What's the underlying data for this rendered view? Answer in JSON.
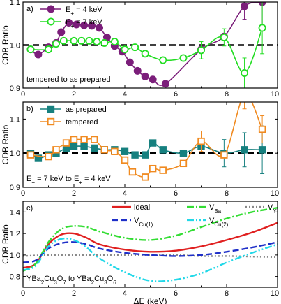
{
  "chart_data": [
    {
      "panel_label": "a)",
      "type": "line",
      "annotation": "tempered to as prepared",
      "ylabel": "CDB Ratio",
      "xlim": [
        0,
        10
      ],
      "ylim": [
        0.9,
        1.1
      ],
      "yticks": [
        0.9,
        1.0,
        1.1
      ],
      "xticks": [
        0,
        2,
        4,
        6,
        8,
        10
      ],
      "reference_line": 1.0,
      "legend_position": "top-left",
      "series": [
        {
          "name_parts": [
            "E",
            "+",
            " = 4 keV"
          ],
          "color": "#7B1E7A",
          "marker": "circle-filled",
          "points": [
            [
              0.3,
              0.99
            ],
            [
              0.6,
              0.978
            ],
            [
              1.0,
              0.995
            ],
            [
              1.3,
              1.005
            ],
            [
              1.5,
              1.03
            ],
            [
              1.8,
              1.052
            ],
            [
              2.1,
              1.048
            ],
            [
              2.4,
              1.046
            ],
            [
              2.7,
              1.045
            ],
            [
              3.0,
              1.04
            ],
            [
              3.3,
              1.018
            ],
            [
              3.6,
              0.998
            ],
            [
              3.9,
              0.985
            ],
            [
              4.2,
              0.96
            ],
            [
              4.5,
              0.94
            ],
            [
              4.8,
              0.927
            ],
            [
              5.1,
              0.92
            ],
            [
              5.6,
              0.91
            ],
            [
              7.0,
              0.99
            ],
            [
              7.9,
              1.02
            ],
            [
              8.7,
              1.09
            ],
            [
              9.4,
              1.1
            ]
          ],
          "errors": [
            [
              8.7,
              0.03
            ],
            [
              9.4,
              0.06
            ]
          ]
        },
        {
          "name_parts": [
            "E",
            "+",
            " = 7 keV"
          ],
          "color": "#22DD22",
          "marker": "circle-open",
          "points": [
            [
              0.3,
              0.99
            ],
            [
              1.0,
              0.99
            ],
            [
              1.3,
              1.003
            ],
            [
              1.6,
              1.01
            ],
            [
              2.0,
              1.01
            ],
            [
              2.3,
              1.01
            ],
            [
              2.6,
              1.01
            ],
            [
              2.9,
              1.008
            ],
            [
              3.2,
              1.005
            ],
            [
              3.6,
              1.008
            ],
            [
              4.0,
              0.99
            ],
            [
              4.4,
              0.995
            ],
            [
              4.8,
              0.98
            ],
            [
              5.5,
              0.965
            ],
            [
              6.3,
              0.97
            ],
            [
              7.0,
              0.988
            ],
            [
              7.9,
              1.018
            ],
            [
              8.7,
              0.935
            ],
            [
              9.4,
              1.04
            ]
          ],
          "errors": [
            [
              7.0,
              0.02
            ],
            [
              7.9,
              0.02
            ],
            [
              8.7,
              0.035
            ],
            [
              9.4,
              0.06
            ]
          ]
        }
      ]
    },
    {
      "panel_label": "b)",
      "type": "line",
      "annotation_parts": [
        "E",
        "+",
        " = 7 keV to E",
        "+",
        " = 4 keV"
      ],
      "ylabel": "CDB Ratio",
      "xlim": [
        0,
        10
      ],
      "ylim": [
        0.9,
        1.15
      ],
      "yticks": [
        0.9,
        1.0,
        1.1
      ],
      "xticks": [
        0,
        2,
        4,
        6,
        8,
        10
      ],
      "reference_line": 1.0,
      "legend_position": "top-left",
      "series": [
        {
          "name": "as prepared",
          "color": "#16807F",
          "marker": "square-filled",
          "points": [
            [
              0.3,
              1.0
            ],
            [
              0.6,
              0.985
            ],
            [
              1.0,
              0.995
            ],
            [
              1.3,
              1.0
            ],
            [
              1.7,
              1.015
            ],
            [
              2.0,
              1.02
            ],
            [
              2.4,
              1.02
            ],
            [
              2.8,
              1.015
            ],
            [
              3.2,
              1.01
            ],
            [
              3.6,
              1.01
            ],
            [
              4.0,
              1.005
            ],
            [
              4.4,
              0.995
            ],
            [
              4.8,
              0.995
            ],
            [
              5.1,
              1.03
            ],
            [
              5.5,
              1.01
            ],
            [
              6.3,
              1.0
            ],
            [
              7.0,
              1.02
            ],
            [
              7.9,
              1.0
            ],
            [
              8.7,
              1.01
            ],
            [
              9.4,
              1.01
            ]
          ],
          "errors": [
            [
              7.9,
              0.04
            ],
            [
              8.7,
              0.05
            ],
            [
              9.4,
              0.07
            ]
          ]
        },
        {
          "name": "tempered",
          "color": "#F08A20",
          "marker": "square-open",
          "points": [
            [
              0.3,
              0.995
            ],
            [
              1.0,
              0.99
            ],
            [
              1.3,
              1.01
            ],
            [
              1.7,
              1.03
            ],
            [
              2.0,
              1.04
            ],
            [
              2.4,
              1.04
            ],
            [
              2.8,
              1.04
            ],
            [
              3.2,
              1.01
            ],
            [
              3.6,
              1.005
            ],
            [
              4.0,
              0.98
            ],
            [
              4.3,
              0.945
            ],
            [
              4.8,
              0.93
            ],
            [
              5.1,
              0.955
            ],
            [
              5.5,
              0.95
            ],
            [
              6.3,
              0.97
            ],
            [
              7.0,
              1.035
            ],
            [
              7.9,
              0.995
            ],
            [
              8.7,
              1.17
            ],
            [
              9.4,
              1.07
            ]
          ],
          "errors": [
            [
              7.0,
              0.03
            ],
            [
              8.7,
              0.04
            ],
            [
              9.4,
              0.04
            ]
          ]
        }
      ]
    },
    {
      "panel_label": "c)",
      "type": "line",
      "annotation_parts": [
        "YBa",
        "2",
        "Cu",
        "3",
        "O",
        "7",
        " to YBa",
        "2",
        "Cu",
        "3",
        "O",
        "6"
      ],
      "xlabel": "ΔE (keV)",
      "ylabel": "CDB Ratio",
      "xlim": [
        0,
        10
      ],
      "ylim": [
        0.7,
        1.5
      ],
      "yticks": [
        0.8,
        1.0,
        1.2,
        1.4
      ],
      "xticks": [
        0,
        2,
        4,
        6,
        8,
        10
      ],
      "legend_position": "top-right",
      "series": [
        {
          "name": "ideal",
          "color": "#E02020",
          "dash": "solid",
          "points": [
            [
              0,
              0.88
            ],
            [
              0.5,
              0.92
            ],
            [
              1,
              1.1
            ],
            [
              1.5,
              1.19
            ],
            [
              2,
              1.2
            ],
            [
              2.5,
              1.16
            ],
            [
              3,
              1.1
            ],
            [
              4,
              1.05
            ],
            [
              5,
              1.03
            ],
            [
              6,
              1.04
            ],
            [
              7,
              1.08
            ],
            [
              8,
              1.14
            ],
            [
              9,
              1.21
            ],
            [
              10,
              1.3
            ]
          ]
        },
        {
          "name_parts": [
            "V",
            "Ba",
            ""
          ],
          "color": "#33DD33",
          "dash": "dashdot",
          "points": [
            [
              0,
              0.85
            ],
            [
              0.5,
              0.92
            ],
            [
              1,
              1.12
            ],
            [
              1.5,
              1.24
            ],
            [
              2,
              1.27
            ],
            [
              2.5,
              1.26
            ],
            [
              3,
              1.22
            ],
            [
              4,
              1.16
            ],
            [
              5,
              1.14
            ],
            [
              6,
              1.18
            ],
            [
              7,
              1.26
            ],
            [
              8,
              1.34
            ],
            [
              9,
              1.4
            ],
            [
              10,
              1.44
            ]
          ]
        },
        {
          "name_parts": [
            "V",
            "Y",
            ""
          ],
          "color": "#888888",
          "dash": "dot",
          "points": [
            [
              0,
              0.99
            ],
            [
              1,
              1.0
            ],
            [
              2,
              1.0
            ],
            [
              3,
              1.0
            ],
            [
              4,
              1.0
            ],
            [
              5,
              1.0
            ],
            [
              6,
              1.0
            ],
            [
              7,
              0.99
            ],
            [
              8,
              0.99
            ],
            [
              9,
              0.985
            ],
            [
              10,
              0.98
            ]
          ]
        },
        {
          "name_parts": [
            "V",
            "Cu(1)",
            ""
          ],
          "color": "#1E2FC8",
          "dash": "dash",
          "points": [
            [
              0,
              0.93
            ],
            [
              0.5,
              0.95
            ],
            [
              1,
              1.06
            ],
            [
              1.5,
              1.11
            ],
            [
              2,
              1.12
            ],
            [
              2.5,
              1.1
            ],
            [
              3,
              1.06
            ],
            [
              4,
              1.02
            ],
            [
              5,
              1.0
            ],
            [
              6,
              0.99
            ],
            [
              7,
              1.0
            ],
            [
              8,
              1.03
            ],
            [
              9,
              1.07
            ],
            [
              10,
              1.12
            ]
          ]
        },
        {
          "name_parts": [
            "V",
            "Cu(2)",
            ""
          ],
          "color": "#22D8E8",
          "dash": "dashdotdot",
          "points": [
            [
              0,
              0.86
            ],
            [
              0.5,
              0.9
            ],
            [
              1,
              1.08
            ],
            [
              1.5,
              1.15
            ],
            [
              2,
              1.14
            ],
            [
              2.5,
              1.07
            ],
            [
              3,
              0.97
            ],
            [
              4,
              0.84
            ],
            [
              5,
              0.76
            ],
            [
              6,
              0.77
            ],
            [
              7,
              0.83
            ],
            [
              8,
              0.93
            ],
            [
              9,
              1.02
            ],
            [
              10,
              1.1
            ]
          ]
        }
      ]
    }
  ]
}
